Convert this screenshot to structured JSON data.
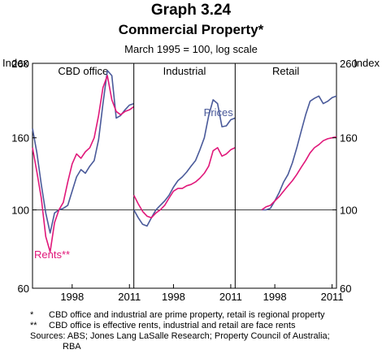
{
  "title": "Graph 3.24",
  "subtitle": "Commercial Property*",
  "note": "March 1995 = 100, log scale",
  "footnotes": [
    {
      "marker": "*",
      "text": "CBD office and industrial are prime property, retail is regional property"
    },
    {
      "marker": "**",
      "text": "CBD office is effective rents, industrial and retail are face rents"
    }
  ],
  "sources": "Sources: ABS; Jones Lang LaSalle Research; Property Council of Australia;",
  "sources_cont": "RBA",
  "colors": {
    "prices": "#4a5a9a",
    "rents": "#e0187a"
  },
  "chart_data": {
    "type": "line",
    "ylabel_left": "Index",
    "ylabel_right": "Index",
    "scale": "log",
    "ylim": [
      60,
      260
    ],
    "yticks": [
      60,
      100,
      160,
      260
    ],
    "ytick_labels": [
      "60",
      "100",
      "160",
      "260"
    ],
    "xlim": [
      1989,
      2012
    ],
    "xticks": [
      1998,
      2011
    ],
    "xtick_labels": [
      "1998",
      "2011"
    ],
    "grid": "horizontal at 100",
    "annotations": [
      {
        "text": "Prices",
        "panel": "Industrial",
        "series": "Prices"
      },
      {
        "text": "Rents**",
        "panel": "CBD office",
        "series": "Rents"
      }
    ],
    "panels": [
      {
        "name": "CBD office",
        "series": [
          {
            "name": "Prices",
            "x": [
              1989,
              1990,
              1991,
              1992,
              1993,
              1994,
              1995,
              1996,
              1997,
              1998,
              1999,
              2000,
              2001,
              2002,
              2003,
              2004,
              2005,
              2006,
              2007,
              2008,
              2009,
              2010,
              2011,
              2012
            ],
            "values": [
              170,
              145,
              118,
              98,
              86,
              98,
              100,
              101,
              103,
              113,
              124,
              130,
              127,
              133,
              138,
              158,
              200,
              248,
              240,
              182,
              185,
              192,
              198,
              200
            ]
          },
          {
            "name": "Rents",
            "x": [
              1989,
              1990,
              1991,
              1992,
              1993,
              1994,
              1995,
              1996,
              1997,
              1998,
              1999,
              2000,
              2001,
              2002,
              2003,
              2004,
              2005,
              2006,
              2007,
              2008,
              2009,
              2010,
              2011,
              2012
            ],
            "values": [
              150,
              128,
              108,
              84,
              76,
              92,
              100,
              105,
              120,
              135,
              144,
              140,
              146,
              150,
              160,
              185,
              222,
              240,
              205,
              190,
              186,
              190,
              192,
              196
            ]
          }
        ]
      },
      {
        "name": "Industrial",
        "series": [
          {
            "name": "Prices",
            "x": [
              1989,
              1990,
              1991,
              1992,
              1993,
              1994,
              1995,
              1996,
              1997,
              1998,
              1999,
              2000,
              2001,
              2002,
              2003,
              2004,
              2005,
              2006,
              2007,
              2008,
              2009,
              2010,
              2011,
              2012
            ],
            "values": [
              100,
              95,
              91,
              90,
              95,
              100,
              103,
              106,
              110,
              116,
              121,
              124,
              128,
              133,
              138,
              148,
              160,
              185,
              205,
              200,
              172,
              173,
              180,
              182
            ]
          },
          {
            "name": "Rents",
            "x": [
              1989,
              1990,
              1991,
              1992,
              1993,
              1994,
              1995,
              1996,
              1997,
              1998,
              1999,
              2000,
              2001,
              2002,
              2003,
              2004,
              2005,
              2006,
              2007,
              2008,
              2009,
              2010,
              2011,
              2012
            ],
            "values": [
              110,
              104,
              99,
              96,
              95,
              98,
              100,
              103,
              108,
              113,
              115,
              115,
              117,
              118,
              120,
              123,
              127,
              133,
              147,
              150,
              142,
              144,
              148,
              150
            ]
          }
        ]
      },
      {
        "name": "Retail",
        "series": [
          {
            "name": "Prices",
            "x": [
              1995,
              1996,
              1997,
              1998,
              1999,
              2000,
              2001,
              2002,
              2003,
              2004,
              2005,
              2006,
              2007,
              2008,
              2009,
              2010,
              2011,
              2012
            ],
            "values": [
              100,
              100,
              101,
              106,
              112,
              120,
              126,
              136,
              150,
              167,
              186,
              203,
              207,
              210,
              200,
              203,
              208,
              210
            ]
          },
          {
            "name": "Rents",
            "x": [
              1995,
              1996,
              1997,
              1998,
              1999,
              2000,
              2001,
              2002,
              2003,
              2004,
              2005,
              2006,
              2007,
              2008,
              2009,
              2010,
              2011,
              2012
            ],
            "values": [
              100,
              102,
              103,
              106,
              109,
              113,
              117,
              121,
              126,
              132,
              138,
              145,
              150,
              153,
              157,
              159,
              160,
              161
            ]
          }
        ]
      }
    ]
  }
}
